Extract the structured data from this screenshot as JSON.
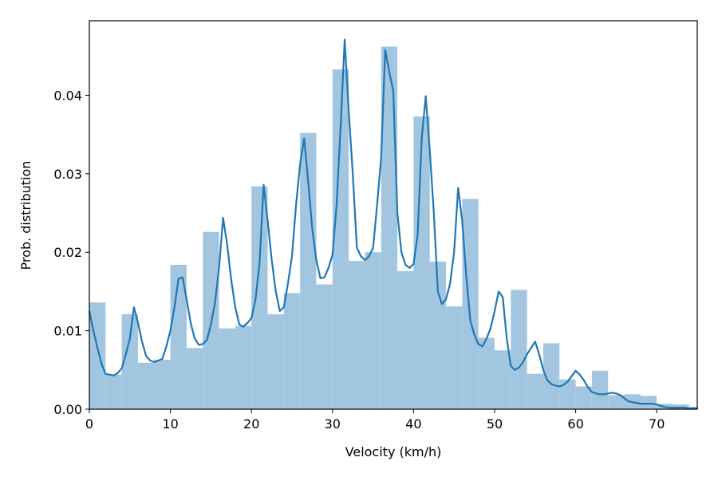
{
  "chart_data": {
    "type": "bar",
    "title": "",
    "xlabel": "Velocity (km/h)",
    "ylabel": "Prob. distribution",
    "xlim": [
      0,
      75
    ],
    "ylim": [
      0,
      0.0495
    ],
    "grid": false,
    "legend": "none",
    "x_ticks": [
      0,
      10,
      20,
      30,
      40,
      50,
      60,
      70
    ],
    "x_tick_labels": [
      "0",
      "10",
      "20",
      "30",
      "40",
      "50",
      "60",
      "70"
    ],
    "y_ticks": [
      0,
      0.01,
      0.02,
      0.03,
      0.04
    ],
    "y_tick_labels": [
      "0.00",
      "0.01",
      "0.02",
      "0.03",
      "0.04"
    ],
    "bin_width": 2,
    "histogram": {
      "bin_starts": [
        0,
        2,
        4,
        6,
        8,
        10,
        12,
        14,
        16,
        18,
        20,
        22,
        24,
        26,
        28,
        30,
        32,
        34,
        36,
        38,
        40,
        42,
        44,
        46,
        48,
        50,
        52,
        54,
        56,
        58,
        60,
        62,
        64,
        66,
        68,
        70,
        72,
        74
      ],
      "values": [
        0.0136,
        0.0044,
        0.0121,
        0.0059,
        0.0063,
        0.0184,
        0.0078,
        0.0226,
        0.0103,
        0.0106,
        0.0284,
        0.0121,
        0.0148,
        0.0352,
        0.0159,
        0.0433,
        0.0189,
        0.02,
        0.0462,
        0.0176,
        0.0373,
        0.0188,
        0.0131,
        0.0268,
        0.0091,
        0.0075,
        0.0152,
        0.0045,
        0.0084,
        0.0038,
        0.0029,
        0.0049,
        0.0018,
        0.0019,
        0.0017,
        0.0007,
        0.0006,
        0.0003
      ],
      "color": "#a3c6e0"
    },
    "kde": {
      "x": [
        0,
        0.5,
        1,
        1.5,
        2,
        2.5,
        3,
        3.5,
        4,
        4.5,
        5,
        5.5,
        6,
        6.5,
        7,
        7.5,
        8,
        8.5,
        9,
        9.5,
        10,
        10.5,
        11,
        11.5,
        12,
        12.5,
        13,
        13.5,
        14,
        14.5,
        15,
        15.5,
        16,
        16.5,
        17,
        17.5,
        18,
        18.5,
        19,
        19.5,
        20,
        20.5,
        21,
        21.5,
        22,
        22.5,
        23,
        23.5,
        24,
        24.5,
        25,
        25.5,
        26,
        26.5,
        27,
        27.5,
        28,
        28.5,
        29,
        29.5,
        30,
        30.5,
        31,
        31.5,
        32,
        32.5,
        33,
        33.5,
        34,
        34.5,
        35,
        35.5,
        36,
        36.5,
        37,
        37.5,
        38,
        38.5,
        39,
        39.5,
        40,
        40.5,
        41,
        41.5,
        42,
        42.5,
        43,
        43.5,
        44,
        44.5,
        45,
        45.5,
        46,
        46.5,
        47,
        47.5,
        48,
        48.5,
        49,
        49.5,
        50,
        50.5,
        51,
        51.5,
        52,
        52.5,
        53,
        53.5,
        54,
        54.5,
        55,
        55.5,
        56,
        56.5,
        57,
        57.5,
        58,
        58.5,
        59,
        59.5,
        60,
        60.5,
        61,
        61.5,
        62,
        62.5,
        63,
        63.5,
        64,
        64.5,
        65,
        65.5,
        66,
        66.5,
        67,
        67.5,
        68,
        68.5,
        69,
        69.5,
        70,
        70.5,
        71,
        71.5,
        72,
        72.5,
        73,
        73.5,
        74,
        74.5,
        75
      ],
      "y": [
        0.0125,
        0.01,
        0.0078,
        0.0058,
        0.0045,
        0.0044,
        0.0043,
        0.0046,
        0.0052,
        0.007,
        0.009,
        0.013,
        0.011,
        0.0086,
        0.0068,
        0.0062,
        0.006,
        0.0062,
        0.0064,
        0.008,
        0.01,
        0.013,
        0.0166,
        0.0168,
        0.014,
        0.011,
        0.009,
        0.0082,
        0.0083,
        0.0088,
        0.0108,
        0.0135,
        0.018,
        0.0244,
        0.021,
        0.0165,
        0.013,
        0.0108,
        0.0105,
        0.011,
        0.0116,
        0.014,
        0.0186,
        0.0286,
        0.024,
        0.019,
        0.015,
        0.0125,
        0.013,
        0.016,
        0.0195,
        0.026,
        0.0312,
        0.0345,
        0.029,
        0.023,
        0.019,
        0.0167,
        0.0168,
        0.018,
        0.0197,
        0.026,
        0.036,
        0.0471,
        0.038,
        0.03,
        0.0206,
        0.0195,
        0.019,
        0.0195,
        0.0205,
        0.026,
        0.032,
        0.0458,
        0.043,
        0.0405,
        0.025,
        0.02,
        0.0184,
        0.018,
        0.0185,
        0.0222,
        0.0344,
        0.0399,
        0.033,
        0.025,
        0.015,
        0.0134,
        0.014,
        0.016,
        0.02,
        0.0282,
        0.024,
        0.017,
        0.0113,
        0.0095,
        0.0083,
        0.008,
        0.009,
        0.0103,
        0.0125,
        0.015,
        0.0143,
        0.009,
        0.0055,
        0.005,
        0.0053,
        0.006,
        0.007,
        0.0078,
        0.0086,
        0.007,
        0.005,
        0.0037,
        0.0032,
        0.003,
        0.0029,
        0.0031,
        0.0035,
        0.0042,
        0.0049,
        0.0044,
        0.0037,
        0.0028,
        0.0022,
        0.002,
        0.0019,
        0.0019,
        0.002,
        0.0021,
        0.002,
        0.0018,
        0.0014,
        0.001,
        0.0009,
        0.0008,
        0.0007,
        0.0007,
        0.0007,
        0.0007,
        0.0006,
        0.0004,
        0.0003,
        0.0002,
        0.0002,
        0.0002,
        0.0002,
        0.0002,
        0.0001,
        0.0001,
        0.0001
      ],
      "color": "#1f77b4"
    }
  }
}
